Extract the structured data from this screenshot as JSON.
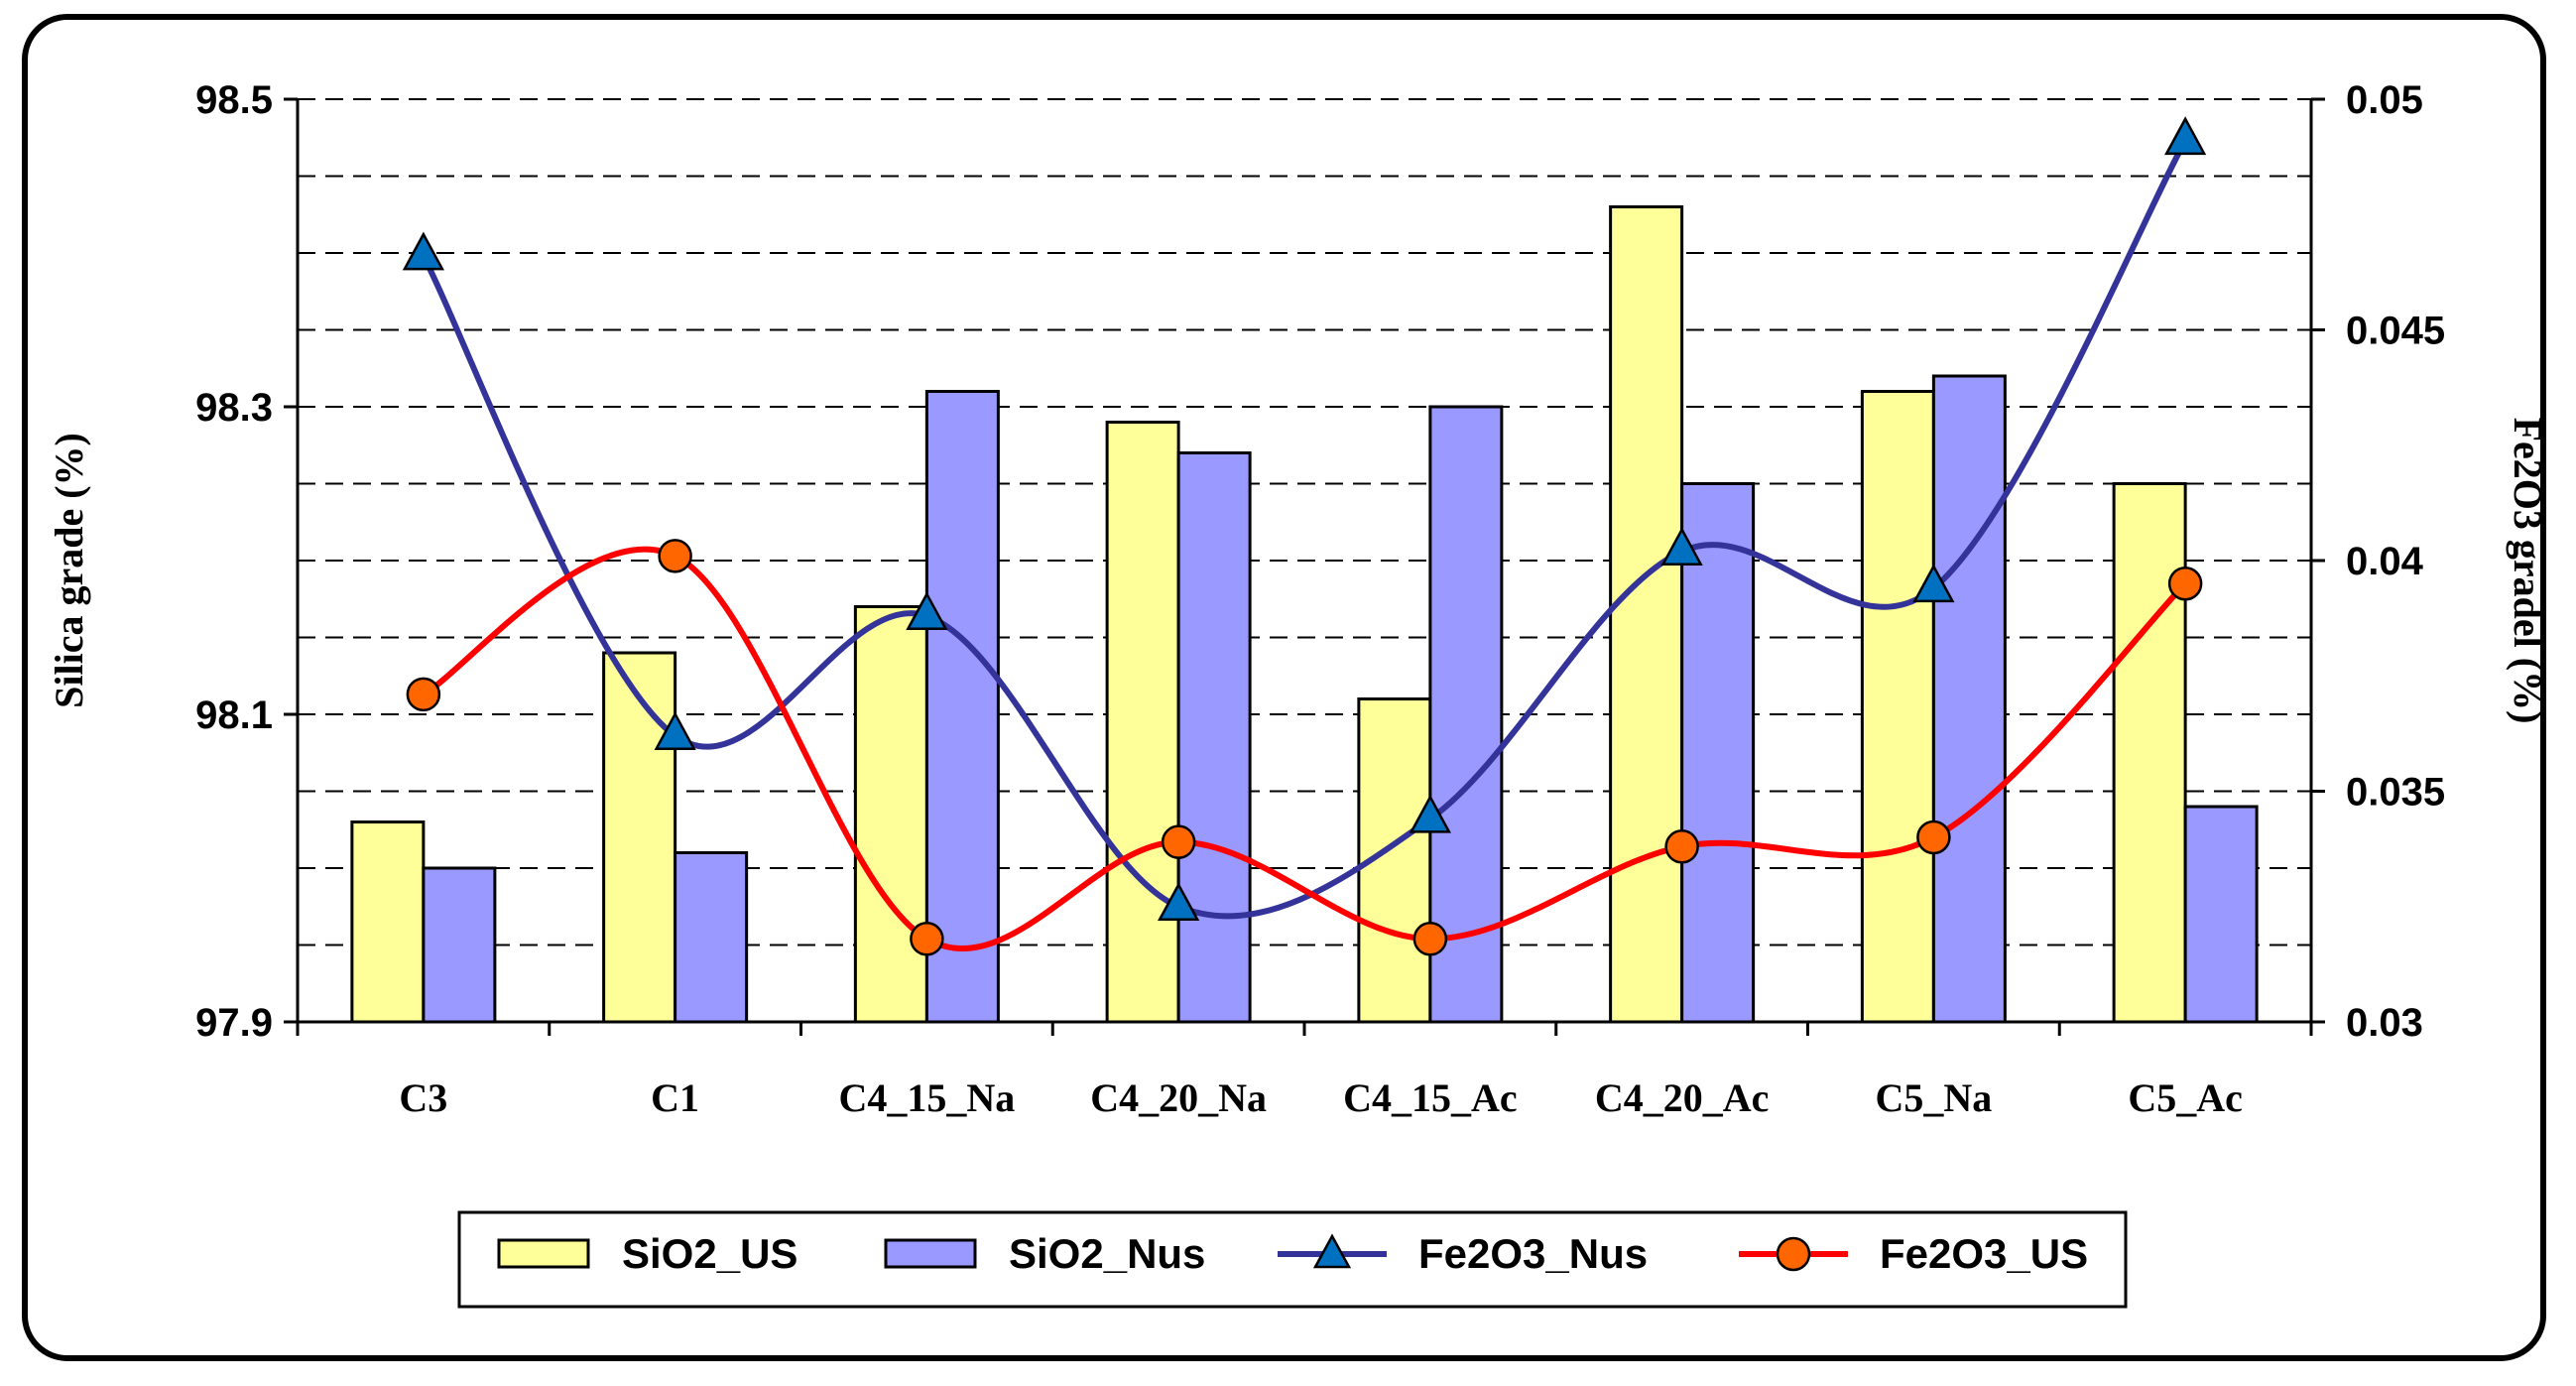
{
  "chart_data": {
    "type": "bar",
    "categories": [
      "C3",
      "C1",
      "C4_15_Na",
      "C4_20_Na",
      "C4_15_Ac",
      "C4_20_Ac",
      "C5_Na",
      "C5_Ac"
    ],
    "series": [
      {
        "name": "SiO2_US",
        "kind": "bar",
        "axis": "left",
        "color": "#ffff99",
        "values": [
          98.03,
          98.14,
          98.17,
          98.29,
          98.11,
          98.43,
          98.31,
          98.25
        ]
      },
      {
        "name": "SiO2_Nus",
        "kind": "bar",
        "axis": "left",
        "color": "#9999ff",
        "values": [
          98.0,
          98.01,
          98.31,
          98.27,
          98.3,
          98.25,
          98.32,
          98.04
        ]
      },
      {
        "name": "Fe2O3_Nus",
        "kind": "line",
        "marker": "triangle",
        "axis": "right",
        "color": "#333399",
        "marker_color": "#0070c0",
        "values": [
          0.0466,
          0.0362,
          0.0388,
          0.0325,
          0.0344,
          0.0402,
          0.0394,
          0.0491
        ]
      },
      {
        "name": "Fe2O3_US",
        "kind": "line",
        "marker": "circle",
        "axis": "right",
        "color": "#ff0000",
        "marker_color": "#ff6600",
        "values": [
          0.0371,
          0.0401,
          0.0318,
          0.0339,
          0.0318,
          0.0338,
          0.034,
          0.0395
        ]
      }
    ],
    "y_left": {
      "label": "Silica grade (%)",
      "min": 97.9,
      "max": 98.5,
      "ticks": [
        "97.9",
        "98.1",
        "98.3",
        "98.5"
      ]
    },
    "y_right": {
      "label": "Fe2O3 gradel (%)",
      "min": 0.03,
      "max": 0.05,
      "ticks": [
        "0.03",
        "0.035",
        "0.04",
        "0.045",
        "0.05"
      ]
    },
    "grid": true,
    "legend_position": "bottom"
  }
}
